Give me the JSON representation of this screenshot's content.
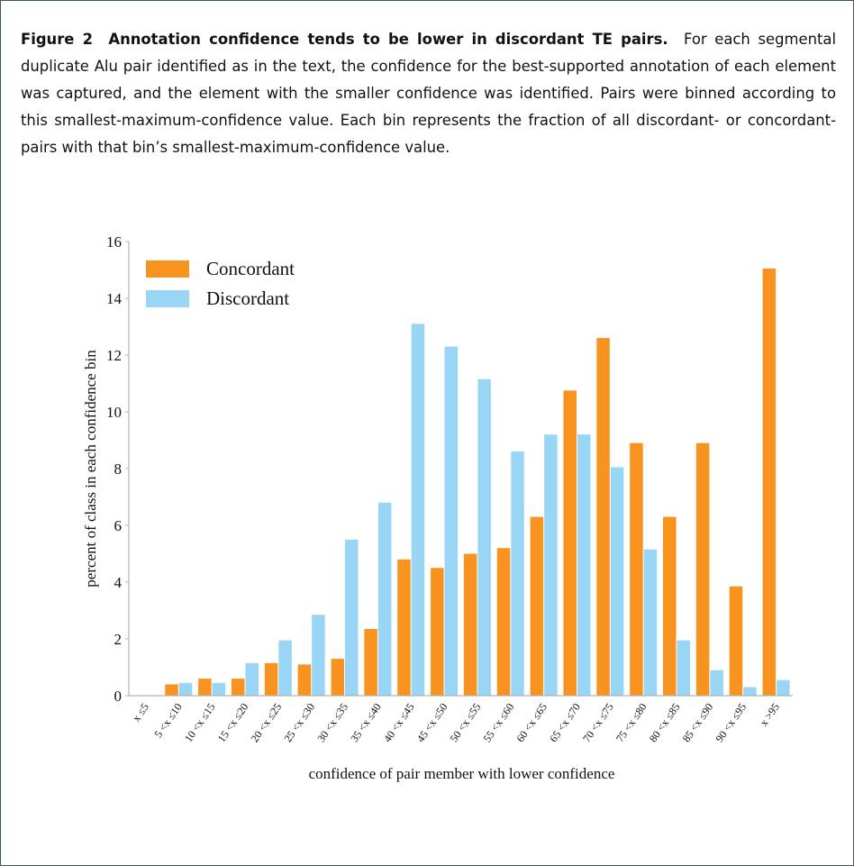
{
  "caption": {
    "label": "Figure 2",
    "title": "Annotation confidence tends to be lower in discordant TE pairs.",
    "body": "For each segmental duplicate Alu pair identified as in the text, the confidence for the best-supported annotation of each element was captured, and the element with the smaller confidence was identified. Pairs were binned according to this smallest-maximum-confidence value. Each bin represents the fraction of all discordant- or concordant- pairs with that bin’s smallest-maximum-confidence value."
  },
  "chart_data": {
    "type": "bar",
    "title": "",
    "xlabel": "confidence of pair member with lower confidence",
    "ylabel": "percent of class in each confidence bin",
    "ylim": [
      0,
      16
    ],
    "yticks": [
      0,
      2,
      4,
      6,
      8,
      10,
      12,
      14,
      16
    ],
    "grid": false,
    "legend_position": "top-left",
    "categories": [
      "x ≤5",
      "5 <x ≤10",
      "10 <x ≤15",
      "15 <x ≤20",
      "20 <x ≤25",
      "25 <x ≤30",
      "30 <x ≤35",
      "35 <x ≤40",
      "40 <x ≤45",
      "45 <x ≤50",
      "50 <x ≤55",
      "55 <x ≤60",
      "60 <x ≤65",
      "65 <x ≤70",
      "70 <x ≤75",
      "75 <x ≤80",
      "80 <x ≤85",
      "85 <x ≤90",
      "90 <x ≤95",
      "x >95"
    ],
    "series": [
      {
        "name": "Concordant",
        "color": "#f7931e",
        "values": [
          0,
          0.4,
          0.6,
          0.6,
          1.15,
          1.1,
          1.3,
          2.35,
          4.8,
          4.5,
          5.0,
          5.2,
          6.3,
          10.75,
          12.6,
          8.9,
          6.3,
          8.9,
          3.85,
          15.05
        ]
      },
      {
        "name": "Discordant",
        "color": "#99d5f5",
        "values": [
          0,
          0.45,
          0.45,
          1.15,
          1.95,
          2.85,
          5.5,
          6.8,
          13.1,
          12.3,
          11.15,
          8.6,
          9.2,
          9.2,
          8.05,
          5.15,
          1.95,
          0.9,
          0.3,
          0.55
        ]
      }
    ]
  }
}
